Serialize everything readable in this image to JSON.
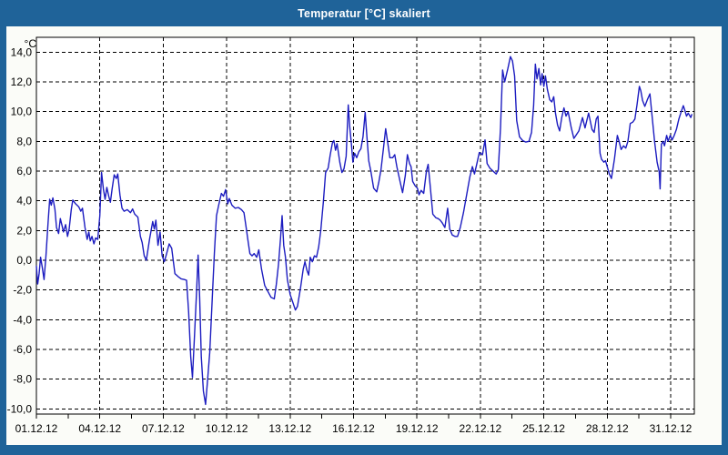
{
  "window": {
    "title": "Temperatur [°C] skaliert"
  },
  "colors": {
    "titlebar_bg": "#1f6399",
    "titlebar_text": "#ffffff",
    "window_border": "#1f6399",
    "page_bg": "#fbfcf8",
    "plot_bg": "#ffffff",
    "grid": "#000000",
    "axis_text": "#000000",
    "line": "#1c1cc0"
  },
  "chart_data": {
    "type": "line",
    "title": "Temperatur [°C] skaliert",
    "y_unit_label": "°C",
    "xlabel": "",
    "ylabel": "°C",
    "grid": "dashed",
    "legend": "none",
    "ylim": [
      -10.35,
      15.0
    ],
    "xlim_days": [
      0,
      31.12
    ],
    "y_ticks": [
      "14,0",
      "12,0",
      "10,0",
      "8,0",
      "6,0",
      "4,0",
      "2,0",
      "0,0",
      "-2,0",
      "-4,0",
      "-6,0",
      "-8,0",
      "-10,0"
    ],
    "y_tick_values": [
      14,
      12,
      10,
      8,
      6,
      4,
      2,
      0,
      -2,
      -4,
      -6,
      -8,
      -10
    ],
    "x_ticks": [
      "01.12.12",
      "04.12.12",
      "07.12.12",
      "10.12.12",
      "13.12.12",
      "16.12.12",
      "19.12.12",
      "22.12.12",
      "25.12.12",
      "28.12.12",
      "31.12.12"
    ],
    "x_tick_days": [
      0,
      3,
      6,
      9,
      12,
      15,
      18,
      21,
      24,
      27,
      30
    ],
    "minor_tick_interval_days": 1.5,
    "series": [
      {
        "name": "Temperatur",
        "color": "#1c1cc0",
        "points": [
          [
            0,
            -0.4
          ],
          [
            0.06,
            -1.6
          ],
          [
            0.13,
            -0.9
          ],
          [
            0.2,
            0.2
          ],
          [
            0.28,
            -0.5
          ],
          [
            0.36,
            -1.3
          ],
          [
            0.45,
            0.3
          ],
          [
            0.55,
            2.5
          ],
          [
            0.63,
            4.1
          ],
          [
            0.7,
            3.7
          ],
          [
            0.78,
            4.2
          ],
          [
            0.88,
            3.4
          ],
          [
            0.95,
            2.2
          ],
          [
            1.05,
            1.8
          ],
          [
            1.13,
            2.8
          ],
          [
            1.22,
            2.3
          ],
          [
            1.28,
            1.9
          ],
          [
            1.38,
            2.4
          ],
          [
            1.47,
            1.6
          ],
          [
            1.55,
            2.1
          ],
          [
            1.65,
            3.4
          ],
          [
            1.72,
            4.05
          ],
          [
            1.85,
            3.8
          ],
          [
            2,
            3.6
          ],
          [
            2.1,
            3.3
          ],
          [
            2.18,
            3.5
          ],
          [
            2.3,
            2.2
          ],
          [
            2.4,
            1.4
          ],
          [
            2.48,
            1.9
          ],
          [
            2.55,
            1.3
          ],
          [
            2.63,
            1.6
          ],
          [
            2.72,
            1.1
          ],
          [
            2.8,
            1.5
          ],
          [
            2.9,
            1.4
          ],
          [
            3,
            3
          ],
          [
            3.08,
            5.9
          ],
          [
            3.17,
            4.8
          ],
          [
            3.25,
            4.1
          ],
          [
            3.33,
            4.9
          ],
          [
            3.42,
            4.3
          ],
          [
            3.5,
            3.9
          ],
          [
            3.58,
            4.8
          ],
          [
            3.68,
            5.75
          ],
          [
            3.78,
            5.5
          ],
          [
            3.85,
            5.8
          ],
          [
            3.95,
            4.4
          ],
          [
            4.05,
            3.5
          ],
          [
            4.15,
            3.3
          ],
          [
            4.3,
            3.4
          ],
          [
            4.45,
            3.2
          ],
          [
            4.55,
            3.45
          ],
          [
            4.65,
            3.1
          ],
          [
            4.8,
            2.9
          ],
          [
            4.92,
            1.6
          ],
          [
            5,
            1.2
          ],
          [
            5.1,
            0.3
          ],
          [
            5.2,
            0
          ],
          [
            5.35,
            1.4
          ],
          [
            5.5,
            2.6
          ],
          [
            5.58,
            2.1
          ],
          [
            5.65,
            2.7
          ],
          [
            5.75,
            1
          ],
          [
            5.85,
            1.9
          ],
          [
            5.95,
            0.3
          ],
          [
            6.05,
            -0.1
          ],
          [
            6.15,
            0.4
          ],
          [
            6.28,
            1.1
          ],
          [
            6.4,
            0.8
          ],
          [
            6.55,
            -0.9
          ],
          [
            6.7,
            -1.1
          ],
          [
            6.85,
            -1.25
          ],
          [
            7,
            -1.3
          ],
          [
            7.1,
            -1.35
          ],
          [
            7.2,
            -3.5
          ],
          [
            7.3,
            -6.5
          ],
          [
            7.38,
            -7.9
          ],
          [
            7.48,
            -5
          ],
          [
            7.58,
            -2
          ],
          [
            7.65,
            0.35
          ],
          [
            7.72,
            -2.5
          ],
          [
            7.8,
            -6.5
          ],
          [
            7.9,
            -8.8
          ],
          [
            8,
            -9.7
          ],
          [
            8.1,
            -8
          ],
          [
            8.2,
            -6.2
          ],
          [
            8.32,
            -2.5
          ],
          [
            8.42,
            0.5
          ],
          [
            8.52,
            3
          ],
          [
            8.62,
            3.7
          ],
          [
            8.75,
            4.5
          ],
          [
            8.85,
            4.3
          ],
          [
            8.95,
            4.75
          ],
          [
            9.05,
            3.8
          ],
          [
            9.12,
            4.15
          ],
          [
            9.25,
            3.7
          ],
          [
            9.4,
            3.5
          ],
          [
            9.55,
            3.55
          ],
          [
            9.7,
            3.4
          ],
          [
            9.82,
            3.2
          ],
          [
            9.92,
            2.2
          ],
          [
            10.02,
            1.2
          ],
          [
            10.1,
            0.45
          ],
          [
            10.2,
            0.3
          ],
          [
            10.3,
            0.45
          ],
          [
            10.42,
            0.2
          ],
          [
            10.52,
            0.7
          ],
          [
            10.65,
            -0.6
          ],
          [
            10.8,
            -1.7
          ],
          [
            10.95,
            -2.1
          ],
          [
            11.1,
            -2.5
          ],
          [
            11.25,
            -2.6
          ],
          [
            11.35,
            -1.6
          ],
          [
            11.45,
            -0.3
          ],
          [
            11.55,
            1.5
          ],
          [
            11.62,
            3
          ],
          [
            11.7,
            1
          ],
          [
            11.78,
            0.2
          ],
          [
            11.87,
            -1.3
          ],
          [
            12,
            -2.3
          ],
          [
            12.12,
            -2.8
          ],
          [
            12.25,
            -3.35
          ],
          [
            12.35,
            -3.1
          ],
          [
            12.5,
            -1.8
          ],
          [
            12.62,
            -0.6
          ],
          [
            12.7,
            -0.1
          ],
          [
            12.8,
            -0.7
          ],
          [
            12.88,
            -1
          ],
          [
            12.95,
            0.2
          ],
          [
            13.05,
            -0.1
          ],
          [
            13.15,
            0.3
          ],
          [
            13.25,
            0.2
          ],
          [
            13.35,
            0.9
          ],
          [
            13.45,
            2
          ],
          [
            13.57,
            3.9
          ],
          [
            13.68,
            5.9
          ],
          [
            13.8,
            6.2
          ],
          [
            13.9,
            7.1
          ],
          [
            14,
            7.9
          ],
          [
            14.07,
            8.05
          ],
          [
            14.15,
            7.4
          ],
          [
            14.22,
            7.85
          ],
          [
            14.35,
            6.6
          ],
          [
            14.45,
            5.9
          ],
          [
            14.55,
            6.15
          ],
          [
            14.65,
            7
          ],
          [
            14.75,
            10.45
          ],
          [
            14.82,
            9
          ],
          [
            14.9,
            7.8
          ],
          [
            14.97,
            6.6
          ],
          [
            15.05,
            7.2
          ],
          [
            15.15,
            6.9
          ],
          [
            15.25,
            7.3
          ],
          [
            15.35,
            7.5
          ],
          [
            15.45,
            8.3
          ],
          [
            15.55,
            9.95
          ],
          [
            15.63,
            8.4
          ],
          [
            15.72,
            6.7
          ],
          [
            15.82,
            6
          ],
          [
            15.95,
            4.85
          ],
          [
            16.1,
            4.6
          ],
          [
            16.2,
            5.3
          ],
          [
            16.3,
            6.1
          ],
          [
            16.42,
            7.6
          ],
          [
            16.52,
            8.85
          ],
          [
            16.62,
            7.9
          ],
          [
            16.72,
            6.9
          ],
          [
            16.85,
            6.9
          ],
          [
            16.95,
            7.1
          ],
          [
            17.05,
            6.3
          ],
          [
            17.2,
            5.3
          ],
          [
            17.32,
            4.55
          ],
          [
            17.45,
            5.7
          ],
          [
            17.55,
            7.1
          ],
          [
            17.65,
            6.5
          ],
          [
            17.72,
            6.3
          ],
          [
            17.8,
            5.3
          ],
          [
            17.92,
            5
          ],
          [
            18.02,
            4.85
          ],
          [
            18.1,
            4.4
          ],
          [
            18.2,
            4.7
          ],
          [
            18.32,
            4.5
          ],
          [
            18.45,
            6
          ],
          [
            18.53,
            6.45
          ],
          [
            18.62,
            5.1
          ],
          [
            18.75,
            3.1
          ],
          [
            18.9,
            2.85
          ],
          [
            19,
            2.8
          ],
          [
            19.1,
            2.7
          ],
          [
            19.2,
            2.5
          ],
          [
            19.32,
            2.2
          ],
          [
            19.45,
            3.5
          ],
          [
            19.55,
            2.1
          ],
          [
            19.67,
            1.7
          ],
          [
            19.8,
            1.6
          ],
          [
            19.92,
            1.6
          ],
          [
            20.05,
            2.2
          ],
          [
            20.2,
            3.2
          ],
          [
            20.35,
            4.4
          ],
          [
            20.5,
            5.6
          ],
          [
            20.62,
            6.3
          ],
          [
            20.72,
            5.8
          ],
          [
            20.85,
            6.6
          ],
          [
            20.95,
            7.25
          ],
          [
            21.1,
            7.1
          ],
          [
            21.22,
            8.1
          ],
          [
            21.32,
            6.5
          ],
          [
            21.45,
            6.2
          ],
          [
            21.6,
            6
          ],
          [
            21.75,
            5.8
          ],
          [
            21.85,
            6.1
          ],
          [
            21.95,
            8.9
          ],
          [
            22.05,
            12.8
          ],
          [
            22.15,
            12
          ],
          [
            22.3,
            12.9
          ],
          [
            22.42,
            13.7
          ],
          [
            22.52,
            13.4
          ],
          [
            22.62,
            12.4
          ],
          [
            22.72,
            9.4
          ],
          [
            22.85,
            8.3
          ],
          [
            23,
            8.05
          ],
          [
            23.15,
            7.95
          ],
          [
            23.3,
            8
          ],
          [
            23.42,
            8.6
          ],
          [
            23.52,
            10.4
          ],
          [
            23.6,
            13.2
          ],
          [
            23.68,
            12.2
          ],
          [
            23.77,
            12.9
          ],
          [
            23.85,
            11.8
          ],
          [
            23.92,
            12.55
          ],
          [
            24,
            11.7
          ],
          [
            24.08,
            12.4
          ],
          [
            24.17,
            11.5
          ],
          [
            24.28,
            10.8
          ],
          [
            24.38,
            10.65
          ],
          [
            24.47,
            11
          ],
          [
            24.55,
            9.9
          ],
          [
            24.65,
            9.1
          ],
          [
            24.75,
            8.7
          ],
          [
            24.85,
            9.6
          ],
          [
            24.95,
            10.25
          ],
          [
            25.05,
            9.7
          ],
          [
            25.15,
            10
          ],
          [
            25.3,
            8.9
          ],
          [
            25.42,
            8.2
          ],
          [
            25.52,
            8.4
          ],
          [
            25.66,
            8.7
          ],
          [
            25.83,
            9.6
          ],
          [
            25.95,
            8.9
          ],
          [
            26.12,
            9.9
          ],
          [
            26.28,
            8.8
          ],
          [
            26.38,
            8.6
          ],
          [
            26.48,
            9.5
          ],
          [
            26.56,
            9.7
          ],
          [
            26.66,
            7.2
          ],
          [
            26.73,
            6.8
          ],
          [
            26.84,
            6.6
          ],
          [
            26.92,
            6.7
          ],
          [
            27.1,
            5.8
          ],
          [
            27.2,
            5.5
          ],
          [
            27.34,
            6.8
          ],
          [
            27.48,
            8.4
          ],
          [
            27.56,
            8
          ],
          [
            27.66,
            7.45
          ],
          [
            27.77,
            7.7
          ],
          [
            27.88,
            7.55
          ],
          [
            27.98,
            8
          ],
          [
            28.09,
            9.2
          ],
          [
            28.21,
            9.3
          ],
          [
            28.31,
            9.5
          ],
          [
            28.41,
            10.45
          ],
          [
            28.52,
            11.7
          ],
          [
            28.59,
            11.4
          ],
          [
            28.67,
            10.75
          ],
          [
            28.78,
            10.35
          ],
          [
            28.91,
            10.85
          ],
          [
            29.02,
            11.2
          ],
          [
            29.1,
            10
          ],
          [
            29.24,
            8
          ],
          [
            29.36,
            6.6
          ],
          [
            29.46,
            5.95
          ],
          [
            29.5,
            4.8
          ],
          [
            29.56,
            7.8
          ],
          [
            29.64,
            8
          ],
          [
            29.71,
            7.7
          ],
          [
            29.81,
            8.4
          ],
          [
            29.88,
            8
          ],
          [
            29.98,
            8.4
          ],
          [
            30.07,
            8.1
          ],
          [
            30.17,
            8.4
          ],
          [
            30.27,
            8.8
          ],
          [
            30.39,
            9.5
          ],
          [
            30.5,
            10
          ],
          [
            30.6,
            10.4
          ],
          [
            30.67,
            10.1
          ],
          [
            30.75,
            9.7
          ],
          [
            30.83,
            9.9
          ],
          [
            30.95,
            9.6
          ],
          [
            31,
            9.8
          ]
        ]
      }
    ]
  }
}
